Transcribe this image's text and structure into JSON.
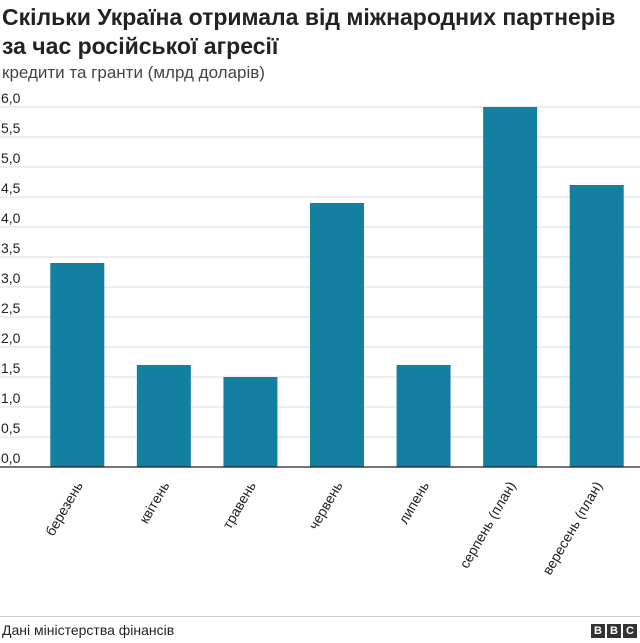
{
  "header": {
    "title": "Скільки Україна отримала від міжнародних партнерів за час російської агресії",
    "subtitle": "кредити та гранти (млрд доларів)"
  },
  "footer": {
    "source": "Дані міністерства фінансів",
    "logo_letters": [
      "B",
      "B",
      "C"
    ]
  },
  "chart_data": {
    "type": "bar",
    "title": "Скільки Україна отримала від міжнародних партнерів за час російської агресії",
    "subtitle": "кредити та гранти (млрд доларів)",
    "categories": [
      "березень",
      "квітень",
      "травень",
      "червень",
      "липень",
      "серпень (план)",
      "вересень (план)"
    ],
    "values": [
      3.4,
      1.7,
      1.5,
      4.4,
      1.7,
      6.0,
      4.7
    ],
    "ylim": [
      0,
      6
    ],
    "yticks": [
      "0,0",
      "0,5",
      "1,0",
      "1,5",
      "2,0",
      "2,5",
      "3,0",
      "3,5",
      "4,0",
      "4,5",
      "5,0",
      "5,5",
      "6,0"
    ],
    "xlabel": "",
    "ylabel": "",
    "grid": true,
    "bar_color": "#1380a1",
    "grid_color": "#dddddd"
  }
}
